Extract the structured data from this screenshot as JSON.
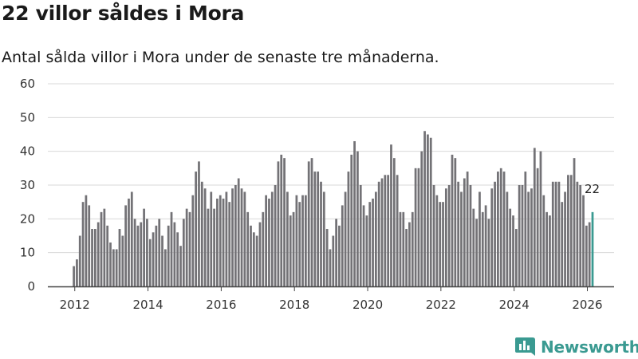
{
  "header": {
    "title": "22 villor såldes i Mora",
    "subtitle": "Antal sålda villor i Mora under de senaste tre månaderna."
  },
  "brand": {
    "name": "Newsworthy",
    "icon": "bar-chart-logo-icon",
    "color": "#3a9a91"
  },
  "chart_data": {
    "type": "bar",
    "title": "22 villor såldes i Mora",
    "subtitle": "Antal sålda villor i Mora under de senaste tre månaderna.",
    "xlabel": "",
    "ylabel": "",
    "ylim": [
      0,
      60
    ],
    "yticks": [
      0,
      10,
      20,
      30,
      40,
      50,
      60
    ],
    "xticks": [
      {
        "label": "2012",
        "year": 2012
      },
      {
        "label": "2014",
        "year": 2014
      },
      {
        "label": "2016",
        "year": 2016
      },
      {
        "label": "2018",
        "year": 2018
      },
      {
        "label": "2020",
        "year": 2020
      },
      {
        "label": "2022",
        "year": 2022
      },
      {
        "label": "2024",
        "year": 2024
      },
      {
        "label": "2026",
        "year": 2026
      }
    ],
    "grid": true,
    "start_year": 2012,
    "start_month": 1,
    "bar_color": "#737276",
    "highlight_color": "#3a9a91",
    "highlight_label": "22",
    "values": [
      6,
      8,
      15,
      25,
      27,
      24,
      17,
      17,
      19,
      22,
      23,
      18,
      13,
      11,
      11,
      17,
      15,
      24,
      26,
      28,
      20,
      18,
      19,
      23,
      20,
      14,
      16,
      18,
      20,
      15,
      11,
      18,
      22,
      19,
      16,
      12,
      20,
      23,
      22,
      27,
      34,
      37,
      31,
      29,
      23,
      28,
      23,
      26,
      27,
      26,
      28,
      25,
      29,
      30,
      32,
      29,
      28,
      22,
      18,
      16,
      15,
      19,
      22,
      27,
      26,
      28,
      30,
      37,
      39,
      38,
      28,
      21,
      22,
      27,
      25,
      27,
      27,
      37,
      38,
      34,
      34,
      31,
      28,
      17,
      11,
      15,
      20,
      18,
      24,
      28,
      34,
      39,
      43,
      40,
      30,
      24,
      21,
      25,
      26,
      28,
      31,
      32,
      33,
      33,
      42,
      38,
      33,
      22,
      22,
      17,
      19,
      22,
      35,
      35,
      40,
      46,
      45,
      44,
      30,
      27,
      25,
      25,
      29,
      30,
      39,
      38,
      31,
      28,
      32,
      34,
      30,
      23,
      20,
      28,
      22,
      24,
      20,
      29,
      31,
      34,
      35,
      34,
      28,
      23,
      21,
      17,
      30,
      30,
      34,
      28,
      29,
      41,
      35,
      40,
      27,
      22,
      21,
      31,
      31,
      31,
      25,
      28,
      33,
      33,
      38,
      31,
      30,
      27,
      18,
      19,
      22
    ]
  }
}
